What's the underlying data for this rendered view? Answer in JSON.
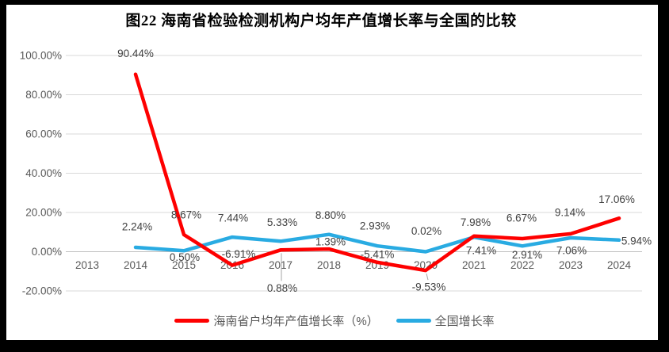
{
  "frame": {
    "border_color": "#000000",
    "paper_color": "#FFFFFF"
  },
  "chart_data": {
    "type": "line",
    "title": "图22  海南省检验检测机构户均年产值增长率与全国的比较",
    "categories": [
      "2013",
      "2014",
      "2015",
      "2016",
      "2017",
      "2018",
      "2019",
      "2020",
      "2021",
      "2022",
      "2023",
      "2024"
    ],
    "series": [
      {
        "name": "海南省户均年产值增长率（%）",
        "color": "#FE0000",
        "values": [
          null,
          90.44,
          8.67,
          -6.91,
          0.88,
          1.39,
          -5.41,
          -9.53,
          7.98,
          6.67,
          9.14,
          17.06
        ],
        "labels": [
          null,
          "90.44%",
          "8.67%",
          "-6.91%",
          "0.88%",
          "1.39%",
          "-5.41%",
          "-9.53%",
          "7.98%",
          "6.67%",
          "9.14%",
          "17.06%"
        ],
        "label_offsets": [
          null,
          {
            "dx": 0,
            "dy": -26
          },
          {
            "dx": 3,
            "dy": -25
          },
          {
            "dx": 8,
            "dy": -14
          },
          {
            "dx": 2,
            "dy": 48,
            "leader": true
          },
          {
            "dx": 2,
            "dy": -9
          },
          {
            "dx": 0,
            "dy": -10
          },
          {
            "dx": 4,
            "dy": 21,
            "leader": true
          },
          {
            "dx": 2,
            "dy": -17
          },
          {
            "dx": -1,
            "dy": -26
          },
          {
            "dx": -1,
            "dy": -27
          },
          {
            "dx": -3,
            "dy": -24
          }
        ]
      },
      {
        "name": "全国增长率",
        "color": "#29ABE2",
        "values": [
          null,
          2.24,
          0.5,
          7.44,
          5.33,
          8.8,
          2.93,
          0.02,
          7.41,
          2.91,
          7.06,
          5.94
        ],
        "labels": [
          null,
          "2.24%",
          "0.50%",
          "7.44%",
          "5.33%",
          "8.80%",
          "2.93%",
          "0.02%",
          "7.41%",
          "2.91%",
          "7.06%",
          "5.94%"
        ],
        "label_offsets": [
          null,
          {
            "dx": 2,
            "dy": -26
          },
          {
            "dx": 1,
            "dy": 8
          },
          {
            "dx": 1,
            "dy": -24
          },
          {
            "dx": 2,
            "dy": -24
          },
          {
            "dx": 2,
            "dy": -24
          },
          {
            "dx": -3,
            "dy": -25
          },
          {
            "dx": 1,
            "dy": -26
          },
          {
            "dx": 9,
            "dy": 17
          },
          {
            "dx": 6,
            "dy": 11
          },
          {
            "dx": 1,
            "dy": 16
          },
          {
            "dx": 22,
            "dy": 1
          }
        ]
      }
    ],
    "ylim": [
      -20,
      100
    ],
    "yticks": [
      {
        "value": 100,
        "label": "100.00%"
      },
      {
        "value": 80,
        "label": "80.00%"
      },
      {
        "value": 60,
        "label": "60.00%"
      },
      {
        "value": 40,
        "label": "40.00%"
      },
      {
        "value": 20,
        "label": "20.00%"
      },
      {
        "value": 0,
        "label": "0.00%"
      },
      {
        "value": -20,
        "label": "-20.00%"
      }
    ],
    "grid": true,
    "legend_position": "bottom",
    "colors": {
      "gridline": "#D9D9D9",
      "axis_line": "#BFBFBF",
      "tick_label": "#595959",
      "data_label": "#404040",
      "leader_line": "#A6A6A6",
      "title": "#000000"
    }
  }
}
